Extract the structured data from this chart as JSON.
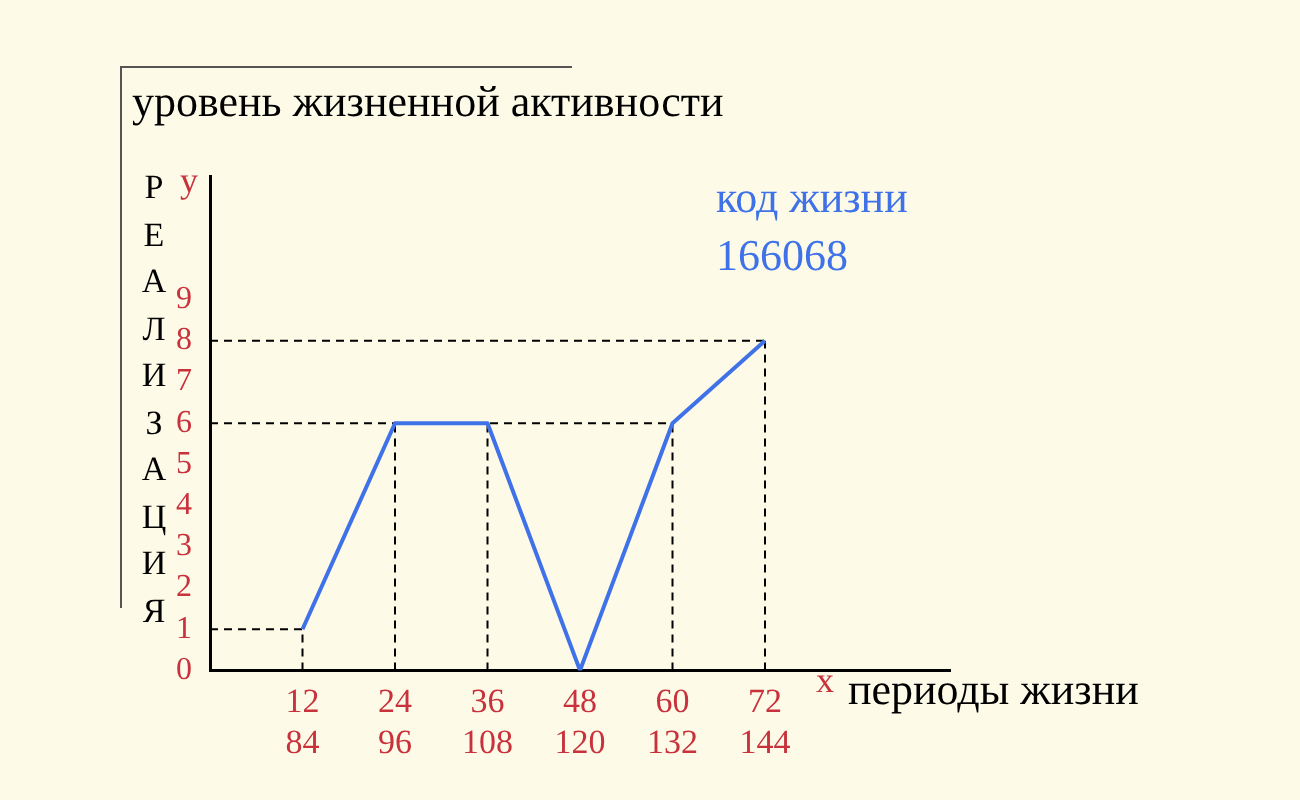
{
  "chart_data": {
    "type": "line",
    "title": "уровень жизненной активности",
    "xlabel": "периоды жизни",
    "ylabel": "РЕАЛИЗАЦИЯ",
    "categories": [
      null,
      "12\n84",
      "24\n96",
      "36\n108",
      "48\n120",
      "60\n132",
      "72\n144",
      null,
      null
    ],
    "series": [
      {
        "color": "#3f72e8",
        "values": [
          null,
          1,
          6,
          6,
          0,
          6,
          8,
          null,
          null
        ]
      }
    ],
    "ylim": [
      0,
      12
    ],
    "yticks": [
      0,
      1,
      2,
      3,
      4,
      5,
      6,
      7,
      8,
      9
    ],
    "ref_lines": [
      {
        "axis": "y",
        "value": 1,
        "line_style": "dashed"
      },
      {
        "axis": "y",
        "value": 6,
        "line_style": "dashed"
      },
      {
        "axis": "y",
        "value": 8,
        "line_style": "dashed"
      },
      {
        "axis": "x",
        "value": "12\n84",
        "line_style": "dashed"
      },
      {
        "axis": "x",
        "value": "24\n96",
        "line_style": "dashed"
      },
      {
        "axis": "x",
        "value": "36\n108",
        "line_style": "dashed"
      },
      {
        "axis": "x",
        "value": "60\n132",
        "line_style": "dashed"
      },
      {
        "axis": "x",
        "value": "72\n144",
        "line_style": "dashed"
      }
    ],
    "annotations": [
      "у",
      "x",
      "код жизни",
      "166068"
    ],
    "grid": false,
    "legend": false,
    "marker": "none",
    "line_style": "solid"
  }
}
